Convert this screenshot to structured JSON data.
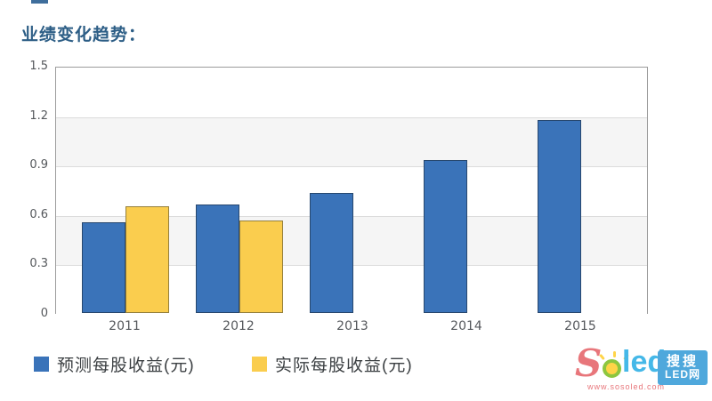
{
  "page": {
    "title": "业绩变化趋势："
  },
  "chart_data": {
    "type": "bar",
    "title": "业绩变化趋势",
    "categories": [
      "2011",
      "2012",
      "2013",
      "2014",
      "2015"
    ],
    "series": [
      {
        "key": "forecast-eps",
        "name": "预测每股收益(元)",
        "color": "#3a73b9",
        "border_color": "#27476e",
        "values": [
          0.55,
          0.66,
          0.73,
          0.93,
          1.17
        ]
      },
      {
        "key": "actual-eps",
        "name": "实际每股收益(元)",
        "color": "#facd4e",
        "border_color": "#95803c",
        "values": [
          0.65,
          0.56,
          null,
          null,
          null
        ]
      }
    ],
    "xlabel": "",
    "ylabel": "",
    "ylim": [
      0,
      1.5
    ],
    "yticks": [
      0,
      0.3,
      0.6,
      0.9,
      1.2,
      1.5
    ],
    "grid": true,
    "band_colors": [
      "#ffffff",
      "#f5f5f5"
    ],
    "legend_position": "bottom"
  },
  "colors": {
    "title": "#2d5e86",
    "axis_text": "#55585c",
    "legend_text": "#3c4043",
    "plot_border": "#9c9c9c",
    "gridline": "#dcdcdc",
    "logo_pink": "#e8767b",
    "logo_green": "#8dc63f",
    "logo_yellow": "#ffd448",
    "logo_led_blue": "#45b8e8",
    "logo_box_blue": "#4fa8dc"
  },
  "logo": {
    "brand_s": "S",
    "brand_led": "led",
    "url": "www.sosoled.com",
    "box_line1": "搜搜",
    "box_line2": "LED网"
  }
}
